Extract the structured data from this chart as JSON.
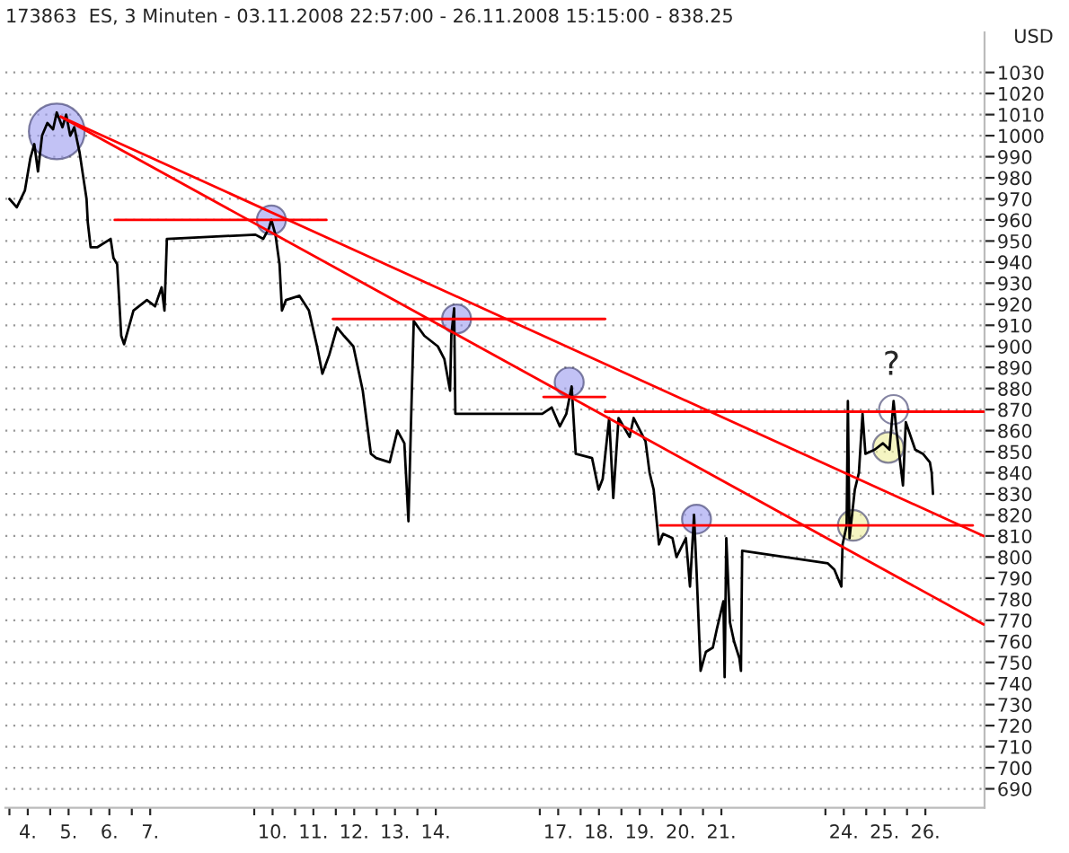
{
  "chart_data": {
    "type": "line",
    "title": "173863  ES, 3 Minuten - 03.11.2008 22:57:00 - 26.11.2008 15:15:00 - 838.25",
    "ylabel": "USD",
    "xlim": [
      "2008-11-03T21:36",
      "2008-11-27T21:36"
    ],
    "ylim": [
      681,
      1049
    ],
    "xticks": [
      {
        "value": "2008-11-04T00:00",
        "label": null
      },
      {
        "value": "2008-11-04T10:48",
        "label": "4."
      },
      {
        "value": "2008-11-05T00:00",
        "label": null
      },
      {
        "value": "2008-11-05T10:48",
        "label": "5."
      },
      {
        "value": "2008-11-06T00:00",
        "label": null
      },
      {
        "value": "2008-11-06T10:48",
        "label": "6."
      },
      {
        "value": "2008-11-07T00:00",
        "label": null
      },
      {
        "value": "2008-11-07T10:48",
        "label": "7."
      },
      {
        "value": "2008-11-10T00:00",
        "label": null
      },
      {
        "value": "2008-11-10T10:48",
        "label": "10."
      },
      {
        "value": "2008-11-11T00:00",
        "label": null
      },
      {
        "value": "2008-11-11T10:48",
        "label": "11."
      },
      {
        "value": "2008-11-12T00:00",
        "label": null
      },
      {
        "value": "2008-11-12T10:48",
        "label": "12."
      },
      {
        "value": "2008-11-13T00:00",
        "label": null
      },
      {
        "value": "2008-11-13T10:48",
        "label": "13."
      },
      {
        "value": "2008-11-14T00:00",
        "label": null
      },
      {
        "value": "2008-11-14T10:48",
        "label": "14."
      },
      {
        "value": "2008-11-17T00:00",
        "label": null
      },
      {
        "value": "2008-11-17T10:48",
        "label": "17."
      },
      {
        "value": "2008-11-18T00:00",
        "label": null
      },
      {
        "value": "2008-11-18T10:48",
        "label": "18."
      },
      {
        "value": "2008-11-19T00:00",
        "label": null
      },
      {
        "value": "2008-11-19T10:48",
        "label": "19."
      },
      {
        "value": "2008-11-20T00:00",
        "label": null
      },
      {
        "value": "2008-11-20T10:48",
        "label": "20."
      },
      {
        "value": "2008-11-21T00:00",
        "label": null
      },
      {
        "value": "2008-11-21T10:48",
        "label": "21."
      },
      {
        "value": "2008-11-24T00:00",
        "label": null
      },
      {
        "value": "2008-11-24T10:48",
        "label": "24."
      },
      {
        "value": "2008-11-25T00:00",
        "label": null
      },
      {
        "value": "2008-11-25T10:48",
        "label": "25."
      },
      {
        "value": "2008-11-26T00:00",
        "label": null
      },
      {
        "value": "2008-11-26T10:48",
        "label": "26."
      }
    ],
    "yticks": [
      690,
      700,
      710,
      720,
      730,
      740,
      750,
      760,
      770,
      780,
      790,
      800,
      810,
      820,
      830,
      840,
      850,
      860,
      870,
      880,
      890,
      900,
      910,
      920,
      930,
      940,
      950,
      960,
      970,
      980,
      990,
      1000,
      1010,
      1020,
      1030
    ],
    "grid": "y",
    "line_style": "solid",
    "annotations": [
      "?"
    ],
    "series": [
      {
        "color": "#000000",
        "x": [
          "2008-11-04T00:00",
          "2008-11-04T04:19",
          "2008-11-04T09:07",
          "2008-11-04T12:14",
          "2008-11-04T14:38",
          "2008-11-04T16:48",
          "2008-11-04T19:12",
          "2008-11-04T22:19",
          "2008-11-05T01:41",
          "2008-11-05T03:50",
          "2008-11-05T07:12",
          "2008-11-05T09:22",
          "2008-11-05T11:46",
          "2008-11-05T14:10",
          "2008-11-05T17:17",
          "2008-11-05T19:41",
          "2008-11-05T21:22",
          "2008-11-05T22:05",
          "2008-11-05T23:46",
          "2008-11-06T03:36",
          "2008-11-06T11:31",
          "2008-11-06T13:12",
          "2008-11-06T15:22",
          "2008-11-06T17:46",
          "2008-11-06T19:26",
          "2008-11-07T00:58",
          "2008-11-07T08:53",
          "2008-11-07T13:41",
          "2008-11-07T17:31",
          "2008-11-07T19:12",
          "2008-11-07T20:38",
          "2008-11-10T00:43",
          "2008-11-10T05:17",
          "2008-11-10T08:38",
          "2008-11-10T10:05",
          "2008-11-10T12:29",
          "2008-11-10T14:53",
          "2008-11-10T16:19",
          "2008-11-10T18:43",
          "2008-11-11T02:38",
          "2008-11-11T08:10",
          "2008-11-11T12:58",
          "2008-11-11T16:05",
          "2008-11-11T20:10",
          "2008-11-12T00:43",
          "2008-11-12T04:48",
          "2008-11-12T10:19",
          "2008-11-12T15:50",
          "2008-11-12T20:38",
          "2008-11-12T23:46",
          "2008-11-13T07:41",
          "2008-11-13T12:14",
          "2008-11-13T16:19",
          "2008-11-13T18:43",
          "2008-11-13T20:10",
          "2008-11-13T21:50",
          "2008-11-14T04:05",
          "2008-11-14T12:00",
          "2008-11-14T15:50",
          "2008-11-14T19:12",
          "2008-11-14T19:55",
          "2008-11-14T21:36",
          "2008-11-14T22:19",
          "2008-11-17T01:26",
          "2008-11-17T06:58",
          "2008-11-17T11:46",
          "2008-11-17T15:36",
          "2008-11-17T18:43",
          "2008-11-17T21:07",
          "2008-11-18T06:43",
          "2008-11-18T10:34",
          "2008-11-18T12:58",
          "2008-11-18T16:48",
          "2008-11-18T19:12",
          "2008-11-18T22:19",
          "2008-11-19T04:48",
          "2008-11-19T07:12",
          "2008-11-19T14:10",
          "2008-11-19T16:34",
          "2008-11-19T18:58",
          "2008-11-19T22:05",
          "2008-11-20T00:29",
          "2008-11-20T06:00",
          "2008-11-20T08:24",
          "2008-11-20T13:55",
          "2008-11-20T16:19",
          "2008-11-20T18:43",
          "2008-11-20T20:10",
          "2008-11-20T22:34",
          "2008-11-21T01:41",
          "2008-11-21T05:46",
          "2008-11-21T08:10",
          "2008-11-21T12:00",
          "2008-11-21T12:43",
          "2008-11-21T13:41",
          "2008-11-21T15:50",
          "2008-11-21T18:14",
          "2008-11-21T21:22",
          "2008-11-21T22:19",
          "2008-11-21T23:02",
          "2008-11-24T01:26",
          "2008-11-24T05:17",
          "2008-11-24T09:22",
          "2008-11-24T10:05",
          "2008-11-24T12:29",
          "2008-11-24T13:12",
          "2008-11-24T14:10",
          "2008-11-24T17:17",
          "2008-11-24T19:41",
          "2008-11-24T21:50",
          "2008-11-24T23:31",
          "2008-11-25T05:02",
          "2008-11-25T09:50",
          "2008-11-25T13:41",
          "2008-11-25T16:05",
          "2008-11-25T17:46",
          "2008-11-25T21:36",
          "2008-11-25T23:17",
          "2008-11-26T04:48",
          "2008-11-26T09:22",
          "2008-11-26T13:26",
          "2008-11-26T14:30",
          "2008-11-26T15:15"
        ],
        "values": [
          970,
          966,
          974,
          989,
          996,
          983,
          1000,
          1006,
          1003,
          1011,
          1004,
          1010,
          1000,
          1004,
          992,
          979,
          970,
          959,
          947,
          947,
          951,
          942,
          939,
          905,
          901,
          917,
          922,
          919,
          928,
          917,
          951,
          953,
          951,
          956,
          960,
          953,
          939,
          917,
          922,
          924,
          917,
          900,
          887,
          896,
          909,
          905,
          900,
          879,
          849,
          847,
          845,
          860,
          854,
          817,
          862,
          912,
          905,
          900,
          894,
          879,
          905,
          918,
          868,
          868,
          871,
          862,
          868,
          881,
          849,
          847,
          832,
          837,
          866,
          828,
          866,
          857,
          866,
          855,
          840,
          832,
          806,
          811,
          809,
          800,
          809,
          786,
          820,
          794,
          746,
          755,
          757,
          766,
          779,
          743,
          809,
          769,
          760,
          752,
          746,
          803,
          797,
          794,
          786,
          806,
          815,
          874,
          809,
          832,
          840,
          868,
          849,
          851,
          854,
          851,
          874,
          860,
          834,
          864,
          851,
          849,
          845,
          840,
          830
        ]
      },
      {
        "type": "line",
        "color": "#ff0000",
        "x": [
          "2008-11-06T13:55",
          "2008-11-11T18:29"
        ],
        "values": [
          960,
          960
        ]
      },
      {
        "type": "line",
        "color": "#ff0000",
        "x": [
          "2008-11-11T22:19",
          "2008-11-18T14:24"
        ],
        "values": [
          913,
          913
        ]
      },
      {
        "type": "line",
        "color": "#ff0000",
        "x": [
          "2008-11-17T02:10",
          "2008-11-18T14:24"
        ],
        "values": [
          876,
          876
        ]
      },
      {
        "type": "line",
        "color": "#ff0000",
        "x": [
          "2008-11-18T14:24",
          "2008-11-27T21:07"
        ],
        "values": [
          869,
          869
        ]
      },
      {
        "type": "line",
        "color": "#ff0000",
        "x": [
          "2008-11-19T22:48",
          "2008-11-27T14:38"
        ],
        "values": [
          815,
          815
        ]
      },
      {
        "type": "line",
        "color": "#ff0000",
        "x": [
          "2008-11-05T06:14",
          "2008-11-27T21:07"
        ],
        "values": [
          1009,
          810
        ]
      },
      {
        "type": "line",
        "color": "#ff0000",
        "x": [
          "2008-11-05T06:14",
          "2008-11-27T21:07"
        ],
        "values": [
          1009,
          768
        ]
      },
      {
        "type": "bubble",
        "marker": "circle",
        "x": [
          "2008-11-05T03:50",
          "2008-11-10T10:05",
          "2008-11-14T23:02",
          "2008-11-17T17:17",
          "2008-11-20T20:10",
          "2008-11-24T16:19",
          "2008-11-25T12:58",
          "2008-11-25T16:05"
        ],
        "values": [
          1002,
          960,
          913,
          883,
          818,
          815,
          852,
          870
        ],
        "sizes": [
          1,
          0.27,
          0.27,
          0.27,
          0.27,
          0.3,
          0.3,
          0.27
        ],
        "colors": [
          "#9999ee",
          "#9999ee",
          "#9999ee",
          "#9999ee",
          "#9999ee",
          "#eeee99",
          "#eeee99",
          "#ffffff"
        ]
      }
    ]
  }
}
